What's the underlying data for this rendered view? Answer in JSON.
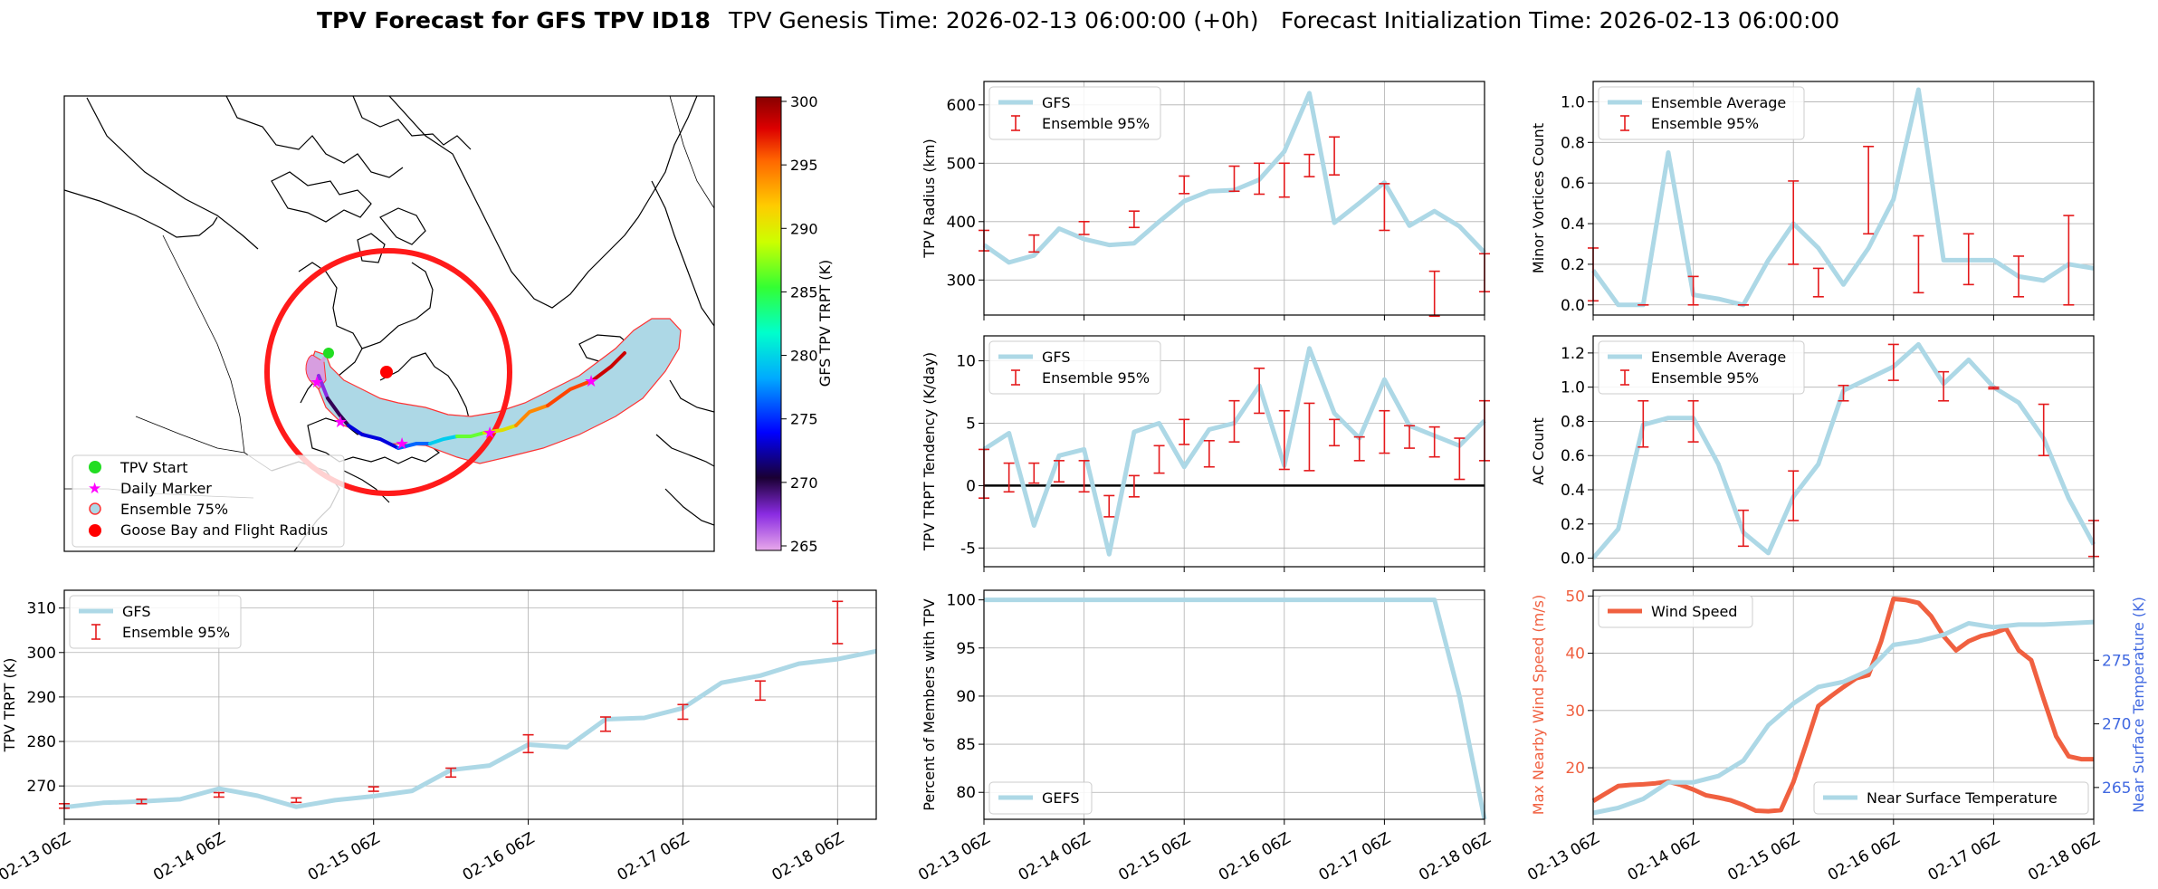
{
  "figure": {
    "title_bold": "TPV Forecast for GFS TPV ID18",
    "title_genesis": "TPV Genesis Time: 2026-02-13 06:00:00 (+0h)",
    "title_init": "Forecast Initialization Time: 2026-02-13 06:00:00"
  },
  "colors": {
    "gfs_line": "#add8e6",
    "error_bar": "#e41a1c",
    "wind": "#f06040",
    "temp_axis": "#4169e1",
    "legend_red": "#ff0000",
    "legend_magenta": "#ff00ff",
    "legend_green": "#22dd22"
  },
  "time_ticks": [
    "02-13 06Z",
    "02-14 06Z",
    "02-15 06Z",
    "02-16 06Z",
    "02-17 06Z",
    "02-18 06Z"
  ],
  "map": {
    "legend": [
      "TPV Start",
      "Daily Marker",
      "Ensemble 75%",
      "Goose Bay and Flight Radius"
    ],
    "colorbar_label": "GFS TPV TRPT (K)",
    "colorbar_ticks": [
      "265",
      "270",
      "275",
      "280",
      "285",
      "290",
      "295",
      "300"
    ]
  },
  "chart_data": [
    {
      "id": "radius",
      "type": "line",
      "ylabel": "TPV Radius (km)",
      "ylim": [
        240,
        640
      ],
      "yticks": [
        300,
        400,
        500,
        600
      ],
      "xlim": [
        0,
        120
      ],
      "legend": [
        "GFS",
        "Ensemble 95%"
      ],
      "series": [
        {
          "name": "GFS",
          "x": [
            0,
            6,
            12,
            18,
            24,
            30,
            36,
            42,
            48,
            54,
            60,
            66,
            72,
            78,
            84,
            90,
            96,
            102,
            108,
            114,
            120
          ],
          "values": [
            360,
            330,
            342,
            388,
            370,
            360,
            363,
            400,
            435,
            452,
            454,
            472,
            520,
            620,
            398,
            432,
            467,
            393,
            418,
            392,
            347
          ]
        }
      ],
      "errorbars": [
        {
          "x": 0,
          "low": 350,
          "high": 385
        },
        {
          "x": 12,
          "low": 348,
          "high": 377
        },
        {
          "x": 24,
          "low": 378,
          "high": 400
        },
        {
          "x": 36,
          "low": 390,
          "high": 418
        },
        {
          "x": 48,
          "low": 448,
          "high": 478
        },
        {
          "x": 60,
          "low": 452,
          "high": 495
        },
        {
          "x": 66,
          "low": 447,
          "high": 500
        },
        {
          "x": 72,
          "low": 442,
          "high": 500
        },
        {
          "x": 78,
          "low": 477,
          "high": 515
        },
        {
          "x": 84,
          "low": 480,
          "high": 545
        },
        {
          "x": 96,
          "low": 385,
          "high": 465
        },
        {
          "x": 108,
          "low": 238,
          "high": 315
        },
        {
          "x": 120,
          "low": 280,
          "high": 345
        }
      ]
    },
    {
      "id": "minor",
      "type": "line",
      "ylabel": "Minor Vortices Count",
      "ylim": [
        -0.05,
        1.1
      ],
      "yticks": [
        0.0,
        0.2,
        0.4,
        0.6,
        0.8,
        1.0
      ],
      "xlim": [
        0,
        120
      ],
      "legend": [
        "Ensemble Average",
        "Ensemble 95%"
      ],
      "series": [
        {
          "name": "Ensemble Average",
          "x": [
            0,
            6,
            12,
            18,
            24,
            30,
            36,
            42,
            48,
            54,
            60,
            66,
            72,
            78,
            84,
            90,
            96,
            102,
            108,
            114,
            120
          ],
          "values": [
            0.17,
            0.0,
            0.0,
            0.75,
            0.05,
            0.03,
            0.0,
            0.22,
            0.4,
            0.28,
            0.1,
            0.28,
            0.52,
            1.06,
            0.22,
            0.22,
            0.22,
            0.14,
            0.12,
            0.2,
            0.18
          ]
        }
      ],
      "errorbars": [
        {
          "x": 0,
          "low": 0.02,
          "high": 0.28
        },
        {
          "x": 12,
          "low": 0.0,
          "high": 0.0
        },
        {
          "x": 24,
          "low": 0.0,
          "high": 0.14
        },
        {
          "x": 36,
          "low": 0.0,
          "high": 0.0
        },
        {
          "x": 48,
          "low": 0.2,
          "high": 0.61
        },
        {
          "x": 54,
          "low": 0.04,
          "high": 0.18
        },
        {
          "x": 66,
          "low": 0.35,
          "high": 0.78
        },
        {
          "x": 78,
          "low": 0.06,
          "high": 0.34
        },
        {
          "x": 90,
          "low": 0.1,
          "high": 0.35
        },
        {
          "x": 102,
          "low": 0.04,
          "high": 0.24
        },
        {
          "x": 114,
          "low": 0.0,
          "high": 0.44
        }
      ]
    },
    {
      "id": "tendency",
      "type": "line",
      "ylabel": "TPV TRPT Tendency (K/day)",
      "ylim": [
        -6.5,
        12
      ],
      "yticks": [
        -5,
        0,
        5,
        10
      ],
      "xlim": [
        0,
        120
      ],
      "zero_line": true,
      "legend": [
        "GFS",
        "Ensemble 95%"
      ],
      "series": [
        {
          "name": "GFS",
          "x": [
            0,
            6,
            12,
            18,
            24,
            30,
            36,
            42,
            48,
            54,
            60,
            66,
            72,
            78,
            84,
            90,
            96,
            102,
            108,
            114,
            120
          ],
          "values": [
            2.9,
            4.2,
            -3.2,
            2.4,
            2.9,
            -5.5,
            4.3,
            5.0,
            1.5,
            4.5,
            5.0,
            8.0,
            1.6,
            11.0,
            5.8,
            3.8,
            8.5,
            4.8,
            4.0,
            3.2,
            5.2
          ]
        }
      ],
      "errorbars": [
        {
          "x": 0,
          "low": -1.0,
          "high": 2.9
        },
        {
          "x": 6,
          "low": -0.5,
          "high": 1.8
        },
        {
          "x": 12,
          "low": 0.2,
          "high": 1.8
        },
        {
          "x": 18,
          "low": 0.3,
          "high": 2.0
        },
        {
          "x": 24,
          "low": -0.5,
          "high": 2.0
        },
        {
          "x": 30,
          "low": -2.5,
          "high": -0.8
        },
        {
          "x": 36,
          "low": -0.9,
          "high": 0.8
        },
        {
          "x": 42,
          "low": 1.0,
          "high": 3.2
        },
        {
          "x": 48,
          "low": 3.3,
          "high": 5.3
        },
        {
          "x": 54,
          "low": 1.5,
          "high": 3.6
        },
        {
          "x": 60,
          "low": 3.5,
          "high": 6.8
        },
        {
          "x": 66,
          "low": 5.8,
          "high": 9.4
        },
        {
          "x": 72,
          "low": 1.3,
          "high": 6.0
        },
        {
          "x": 78,
          "low": 1.2,
          "high": 6.6
        },
        {
          "x": 84,
          "low": 3.2,
          "high": 5.3
        },
        {
          "x": 90,
          "low": 2.0,
          "high": 3.9
        },
        {
          "x": 96,
          "low": 2.6,
          "high": 6.0
        },
        {
          "x": 102,
          "low": 3.0,
          "high": 4.8
        },
        {
          "x": 108,
          "low": 2.3,
          "high": 4.7
        },
        {
          "x": 114,
          "low": 0.5,
          "high": 3.8
        },
        {
          "x": 120,
          "low": 2.0,
          "high": 6.8
        }
      ]
    },
    {
      "id": "ac",
      "type": "line",
      "ylabel": "AC Count",
      "ylim": [
        -0.05,
        1.3
      ],
      "yticks": [
        0.0,
        0.2,
        0.4,
        0.6,
        0.8,
        1.0,
        1.2
      ],
      "xlim": [
        0,
        120
      ],
      "legend": [
        "Ensemble Average",
        "Ensemble 95%"
      ],
      "series": [
        {
          "name": "Ensemble Average",
          "x": [
            0,
            6,
            12,
            18,
            24,
            30,
            36,
            42,
            48,
            54,
            60,
            66,
            72,
            78,
            84,
            90,
            96,
            102,
            108,
            114,
            120
          ],
          "values": [
            0.0,
            0.17,
            0.78,
            0.82,
            0.82,
            0.55,
            0.15,
            0.03,
            0.36,
            0.55,
            0.98,
            1.05,
            1.12,
            1.25,
            1.02,
            1.16,
            1.0,
            0.91,
            0.7,
            0.35,
            0.08
          ]
        }
      ],
      "errorbars": [
        {
          "x": 12,
          "low": 0.65,
          "high": 0.92
        },
        {
          "x": 24,
          "low": 0.68,
          "high": 0.92
        },
        {
          "x": 36,
          "low": 0.07,
          "high": 0.28
        },
        {
          "x": 48,
          "low": 0.22,
          "high": 0.51
        },
        {
          "x": 60,
          "low": 0.92,
          "high": 1.01
        },
        {
          "x": 72,
          "low": 1.04,
          "high": 1.25
        },
        {
          "x": 84,
          "low": 0.92,
          "high": 1.09
        },
        {
          "x": 96,
          "low": 0.99,
          "high": 1.0
        },
        {
          "x": 108,
          "low": 0.6,
          "high": 0.9
        },
        {
          "x": 120,
          "low": 0.01,
          "high": 0.22
        }
      ]
    },
    {
      "id": "trpt",
      "type": "line",
      "ylabel": "TPV TRPT (K)",
      "ylim": [
        262.5,
        314
      ],
      "yticks": [
        270,
        280,
        290,
        300,
        310
      ],
      "xlim": [
        0,
        126
      ],
      "legend": [
        "GFS",
        "Ensemble 95%"
      ],
      "series": [
        {
          "name": "GFS",
          "x": [
            0,
            6,
            12,
            18,
            24,
            30,
            36,
            42,
            48,
            54,
            60,
            66,
            72,
            78,
            84,
            90,
            96,
            102,
            108,
            114,
            120,
            126
          ],
          "values": [
            265.2,
            266.2,
            266.5,
            267.0,
            269.4,
            267.8,
            265.3,
            266.8,
            267.7,
            268.9,
            273.6,
            274.6,
            279.3,
            278.7,
            285.0,
            285.3,
            287.5,
            293.2,
            294.8,
            297.5,
            298.5,
            300.3
          ]
        }
      ],
      "errorbars": [
        {
          "x": 0,
          "low": 265.0,
          "high": 266.0
        },
        {
          "x": 12,
          "low": 266.0,
          "high": 267.0
        },
        {
          "x": 24,
          "low": 267.5,
          "high": 268.5
        },
        {
          "x": 36,
          "low": 266.3,
          "high": 267.3
        },
        {
          "x": 48,
          "low": 268.8,
          "high": 269.8
        },
        {
          "x": 60,
          "low": 272.0,
          "high": 274.0
        },
        {
          "x": 72,
          "low": 277.5,
          "high": 281.5
        },
        {
          "x": 84,
          "low": 282.3,
          "high": 285.5
        },
        {
          "x": 96,
          "low": 285.0,
          "high": 288.3
        },
        {
          "x": 108,
          "low": 289.3,
          "high": 293.6
        },
        {
          "x": 120,
          "low": 302.0,
          "high": 311.5
        }
      ]
    },
    {
      "id": "percent",
      "type": "line",
      "ylabel": "Percent of Members with TPV",
      "ylim": [
        77.2,
        101
      ],
      "yticks": [
        80,
        85,
        90,
        95,
        100
      ],
      "xlim": [
        0,
        120
      ],
      "legend": [
        "GEFS"
      ],
      "series": [
        {
          "name": "GEFS",
          "x": [
            0,
            6,
            12,
            18,
            24,
            30,
            36,
            42,
            48,
            54,
            60,
            66,
            72,
            78,
            84,
            90,
            96,
            102,
            108,
            114,
            120
          ],
          "values": [
            100,
            100,
            100,
            100,
            100,
            100,
            100,
            100,
            100,
            100,
            100,
            100,
            100,
            100,
            100,
            100,
            100,
            100,
            100,
            90,
            77.2
          ]
        }
      ],
      "errorbars": []
    },
    {
      "id": "wind",
      "type": "line",
      "ylabel": "Max Nearby Wind Speed (m/s)",
      "ylabel2": "Near Surface Temperature (K)",
      "ylim": [
        11,
        51
      ],
      "yticks": [
        20,
        30,
        40,
        50
      ],
      "ylim2": [
        262.5,
        280.5
      ],
      "yticks2": [
        265,
        270,
        275
      ],
      "xlim": [
        0,
        120
      ],
      "legend": [
        "Wind Speed"
      ],
      "legend2": [
        "Near Surface Temperature"
      ],
      "series": [
        {
          "name": "Wind Speed",
          "axis": "left",
          "x": [
            0,
            3,
            6,
            9,
            12,
            15,
            18,
            21,
            24,
            27,
            30,
            33,
            36,
            39,
            42,
            45,
            48,
            51,
            54,
            57,
            60,
            63,
            66,
            69,
            72,
            75,
            78,
            81,
            84,
            87,
            90,
            93,
            96,
            99,
            102,
            105,
            108,
            111,
            114,
            117,
            120
          ],
          "values": [
            14.2,
            15.5,
            16.8,
            17.0,
            17.1,
            17.3,
            17.6,
            17.0,
            16.2,
            15.2,
            14.8,
            14.3,
            13.5,
            12.5,
            12.4,
            12.6,
            17.5,
            24.0,
            30.8,
            32.5,
            34.1,
            35.6,
            36.2,
            42.0,
            49.5,
            49.3,
            48.8,
            46.5,
            43.0,
            40.5,
            42.1,
            43.0,
            43.5,
            44.3,
            40.5,
            38.8,
            32.0,
            25.5,
            22.0,
            21.5,
            21.5
          ]
        },
        {
          "name": "Near Surface Temperature",
          "axis": "right",
          "x": [
            0,
            6,
            12,
            18,
            24,
            30,
            36,
            42,
            48,
            54,
            60,
            66,
            72,
            78,
            84,
            90,
            96,
            102,
            108,
            114,
            120
          ],
          "values": [
            263.0,
            263.4,
            264.1,
            265.4,
            265.4,
            265.9,
            267.1,
            269.9,
            271.6,
            272.9,
            273.3,
            274.2,
            276.2,
            276.5,
            277.0,
            277.9,
            277.6,
            277.8,
            277.8,
            277.9,
            278.0
          ]
        }
      ],
      "errorbars": []
    }
  ]
}
